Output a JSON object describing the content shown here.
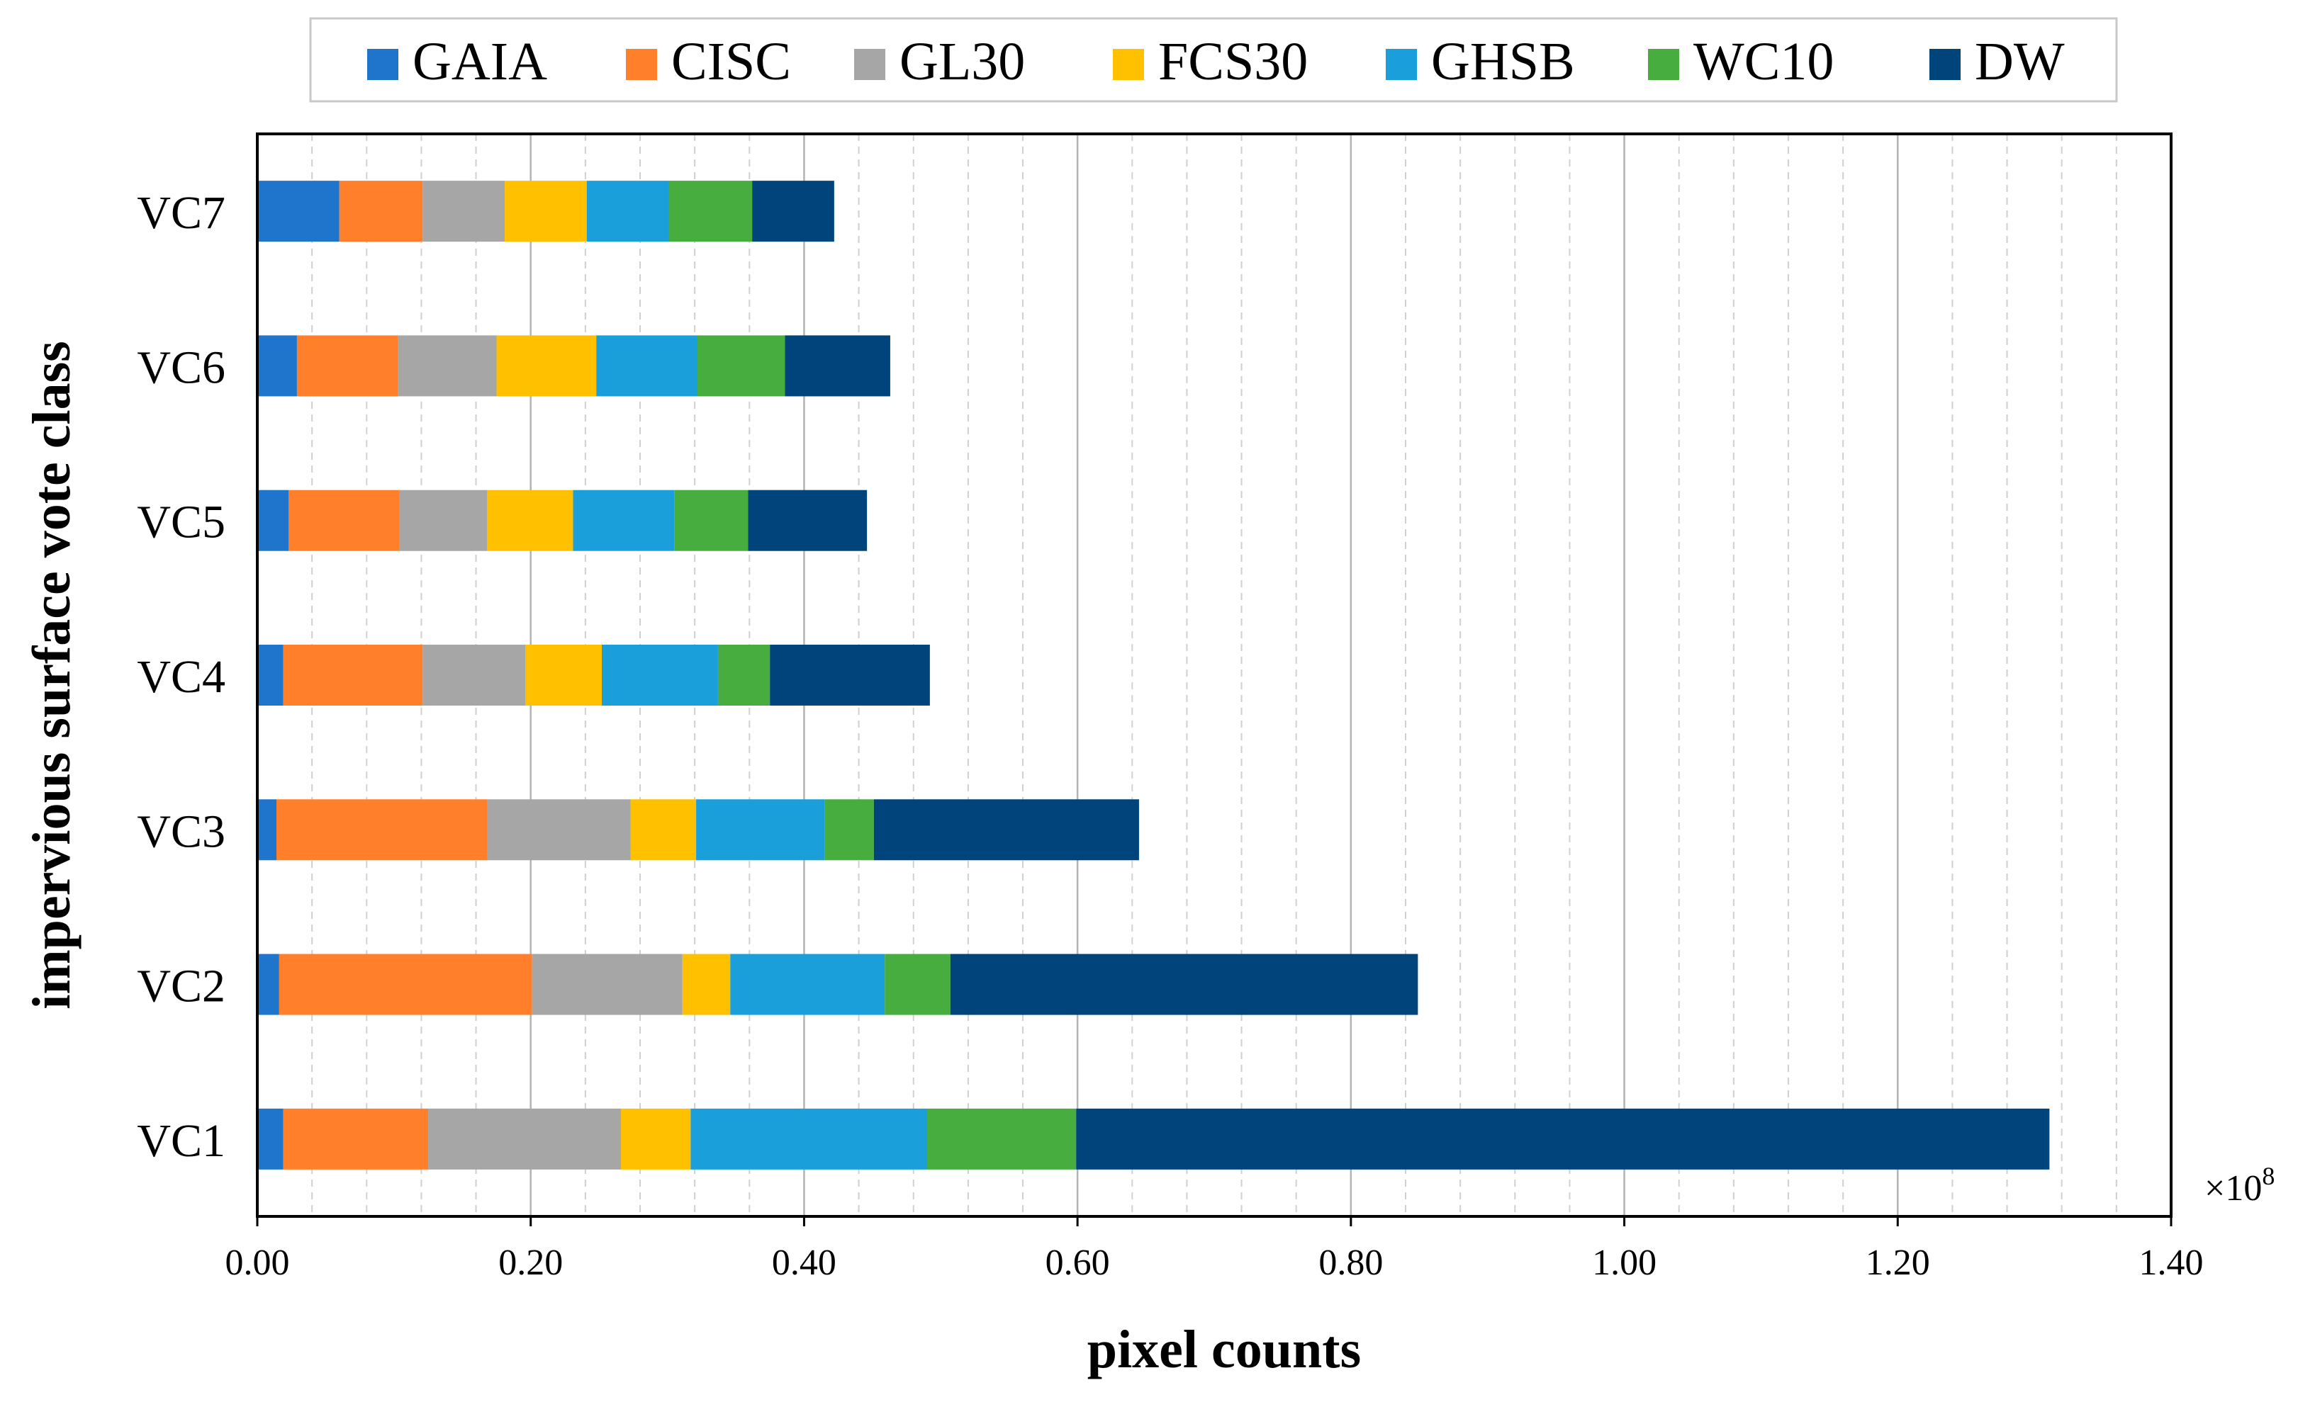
{
  "chart_data": {
    "type": "bar",
    "orientation": "horizontal",
    "stacked": true,
    "title": "",
    "xlabel": "pixel counts",
    "ylabel": "impervious surface vote class",
    "xlim": [
      0,
      1.4
    ],
    "x_scale_label": "×10",
    "x_scale_exponent": "8",
    "x_ticks": [
      "0.00",
      "0.20",
      "0.40",
      "0.60",
      "0.80",
      "1.00",
      "1.20",
      "1.40"
    ],
    "grid": "vertical major solid, minor dashed",
    "legend_position": "top",
    "categories": [
      "VC7",
      "VC6",
      "VC5",
      "VC4",
      "VC3",
      "VC2",
      "VC1"
    ],
    "series": [
      {
        "name": "GAIA",
        "color": "#1F74CC",
        "values": [
          0.06,
          0.029,
          0.023,
          0.019,
          0.014,
          0.016,
          0.019
        ]
      },
      {
        "name": "CISC",
        "color": "#FF7F2A",
        "values": [
          0.061,
          0.074,
          0.081,
          0.102,
          0.154,
          0.185,
          0.106
        ]
      },
      {
        "name": "GL30",
        "color": "#A6A6A6",
        "values": [
          0.06,
          0.072,
          0.064,
          0.075,
          0.105,
          0.11,
          0.141
        ]
      },
      {
        "name": "FCS30",
        "color": "#FFC000",
        "values": [
          0.06,
          0.073,
          0.063,
          0.056,
          0.048,
          0.035,
          0.051
        ]
      },
      {
        "name": "GHSB",
        "color": "#1A9FDB",
        "values": [
          0.06,
          0.074,
          0.074,
          0.085,
          0.094,
          0.113,
          0.173
        ]
      },
      {
        "name": "WC10",
        "color": "#47AD3F",
        "values": [
          0.061,
          0.064,
          0.054,
          0.038,
          0.036,
          0.048,
          0.109
        ]
      },
      {
        "name": "DW",
        "color": "#00447C",
        "values": [
          0.06,
          0.077,
          0.087,
          0.117,
          0.194,
          0.342,
          0.712
        ]
      }
    ]
  }
}
